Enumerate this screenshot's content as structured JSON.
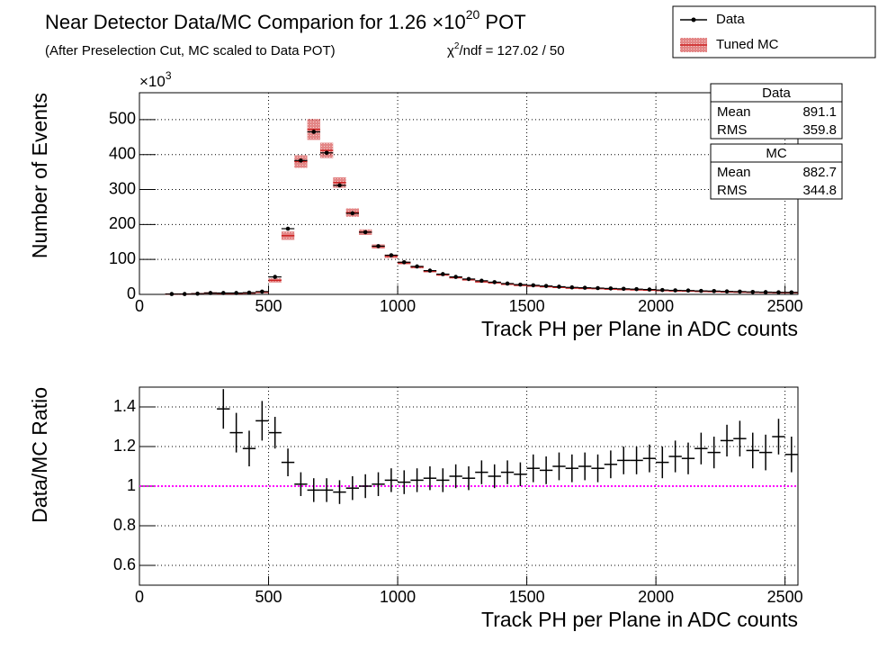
{
  "chart_data": [
    {
      "type": "datamc",
      "title": [
        "Near Detector Data/MC Comparion for 1.26 ×10",
        "20",
        " POT"
      ],
      "subtitle": "(After Preselection Cut, MC scaled to Data POT)",
      "chi2": [
        "χ",
        "2",
        "/ndf = 127.02 / 50"
      ],
      "y_multiplier": [
        "×10",
        "3"
      ],
      "xlabel": "Track PH per Plane in ADC counts",
      "ylabel": "Number of Events",
      "xlim": [
        0,
        2550
      ],
      "xticks": [
        0,
        500,
        1000,
        1500,
        2000,
        2500
      ],
      "ylim": [
        0,
        577
      ],
      "yticks": [
        0,
        100,
        200,
        300,
        400,
        500
      ],
      "grid": true,
      "x": [
        125,
        175,
        225,
        275,
        325,
        375,
        425,
        475,
        525,
        575,
        625,
        675,
        725,
        775,
        825,
        875,
        925,
        975,
        1025,
        1075,
        1125,
        1175,
        1225,
        1275,
        1325,
        1375,
        1425,
        1475,
        1525,
        1575,
        1625,
        1675,
        1725,
        1775,
        1825,
        1875,
        1925,
        1975,
        2025,
        2075,
        2125,
        2175,
        2225,
        2275,
        2325,
        2375,
        2425,
        2475,
        2525
      ],
      "series": [
        {
          "name": "Data",
          "color": "#000000",
          "values": [
            1,
            1,
            2,
            4,
            4,
            4,
            5,
            8,
            50,
            188,
            383,
            465,
            405,
            312,
            232,
            178,
            138,
            112,
            92,
            80,
            68,
            58,
            50,
            44,
            39,
            35,
            31,
            28,
            26,
            24,
            22,
            20,
            19,
            18,
            17,
            16,
            15,
            14,
            12.5,
            11.5,
            11,
            10,
            9.5,
            8.5,
            8,
            7,
            6.5,
            6,
            5.8
          ]
        },
        {
          "name": "Tuned MC",
          "color": "#cc2222",
          "values": [
            1,
            1,
            2,
            4,
            3,
            3,
            4,
            6,
            40,
            168,
            380,
            472,
            412,
            320,
            234,
            178,
            137,
            109,
            90,
            78,
            66,
            56,
            48,
            42,
            36,
            33,
            29,
            26,
            24,
            22,
            20,
            18,
            17,
            16.5,
            15,
            14,
            13,
            12,
            11,
            10,
            9.5,
            8.5,
            8,
            7,
            6.5,
            6,
            5.5,
            5,
            5
          ],
          "errors": [
            0.5,
            0.5,
            0.5,
            0.5,
            0.5,
            0.5,
            0.5,
            1,
            6,
            12,
            18,
            30,
            22,
            15,
            12,
            8,
            6,
            5,
            4,
            3.5,
            3,
            3,
            2.5,
            2.5,
            2,
            2,
            2,
            2,
            1.5,
            1.5,
            1.5,
            1.5,
            1.5,
            1.5,
            1.5,
            1.5,
            1.5,
            1.5,
            1.5,
            1.5,
            1.5,
            1.5,
            1.5,
            1.5,
            1.5,
            1.5,
            1.5,
            1.5,
            1.5
          ]
        }
      ],
      "stats": [
        {
          "name": "Data",
          "color": "#000000",
          "rows": [
            [
              "Mean",
              "891.1"
            ],
            [
              "RMS",
              "359.8"
            ]
          ]
        },
        {
          "name": "MC",
          "color": "#ee0000",
          "rows": [
            [
              "Mean",
              "882.7"
            ],
            [
              "RMS",
              "344.8"
            ]
          ]
        }
      ]
    },
    {
      "type": "ratio",
      "xlabel": "Track PH per Plane in ADC counts",
      "ylabel": "Data/MC Ratio",
      "xlim": [
        0,
        2550
      ],
      "xticks": [
        0,
        500,
        1000,
        1500,
        2000,
        2500
      ],
      "ylim": [
        0.5,
        1.5
      ],
      "yticks": [
        0.6,
        0.8,
        1,
        1.2,
        1.4
      ],
      "grid": true,
      "reference": 1,
      "reference_color": "#ff00ff",
      "x": [
        325,
        375,
        425,
        475,
        525,
        575,
        625,
        675,
        725,
        775,
        825,
        875,
        925,
        975,
        1025,
        1075,
        1125,
        1175,
        1225,
        1275,
        1325,
        1375,
        1425,
        1475,
        1525,
        1575,
        1625,
        1675,
        1725,
        1775,
        1825,
        1875,
        1925,
        1975,
        2025,
        2075,
        2125,
        2175,
        2225,
        2275,
        2325,
        2375,
        2425,
        2475,
        2525
      ],
      "values": [
        1.39,
        1.27,
        1.19,
        1.33,
        1.27,
        1.12,
        1.01,
        0.98,
        0.98,
        0.97,
        0.99,
        1.0,
        1.01,
        1.03,
        1.02,
        1.03,
        1.04,
        1.03,
        1.05,
        1.04,
        1.07,
        1.05,
        1.07,
        1.06,
        1.09,
        1.08,
        1.1,
        1.09,
        1.1,
        1.09,
        1.11,
        1.13,
        1.13,
        1.14,
        1.12,
        1.15,
        1.14,
        1.19,
        1.17,
        1.23,
        1.24,
        1.18,
        1.17,
        1.25,
        1.16
      ],
      "errors": [
        0.1,
        0.1,
        0.09,
        0.1,
        0.08,
        0.07,
        0.06,
        0.06,
        0.06,
        0.06,
        0.06,
        0.06,
        0.06,
        0.06,
        0.06,
        0.06,
        0.06,
        0.06,
        0.06,
        0.06,
        0.06,
        0.06,
        0.06,
        0.06,
        0.07,
        0.07,
        0.07,
        0.07,
        0.07,
        0.07,
        0.07,
        0.07,
        0.07,
        0.07,
        0.08,
        0.08,
        0.08,
        0.08,
        0.08,
        0.08,
        0.09,
        0.09,
        0.09,
        0.09,
        0.09
      ]
    }
  ]
}
